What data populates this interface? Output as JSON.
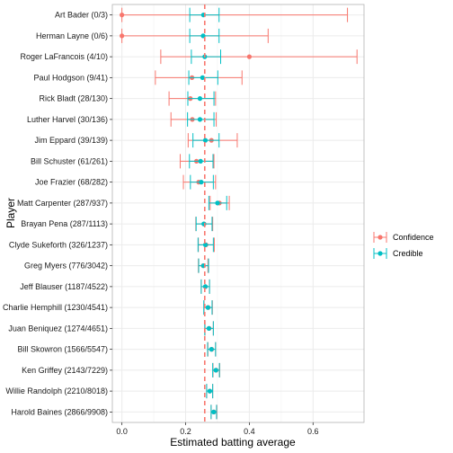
{
  "chart_data": {
    "type": "dot-errorbar",
    "xlabel": "Estimated batting average",
    "ylabel": "Player",
    "xlim": [
      -0.03,
      0.76
    ],
    "xticks": [
      0.0,
      0.2,
      0.4,
      0.6
    ],
    "xtick_labels": [
      "0.0",
      "0.2",
      "0.4",
      "0.6"
    ],
    "reference_line": {
      "x": 0.26,
      "color": "#F8766D",
      "style": "dashed"
    },
    "grid": true,
    "legend_position": "right",
    "legend_title": "",
    "players": [
      "Art Bader (0/3)",
      "Herman Layne (0/6)",
      "Roger LaFrancois (4/10)",
      "Paul Hodgson (9/41)",
      "Rick Bladt (28/130)",
      "Luther Harvel (30/136)",
      "Jim Eppard (39/139)",
      "Bill Schuster (61/261)",
      "Joe Frazier (68/282)",
      "Matt Carpenter (287/937)",
      "Brayan Pena (287/1113)",
      "Clyde Sukeforth (326/1237)",
      "Greg Myers (776/3042)",
      "Jeff Blauser (1187/4522)",
      "Charlie Hemphill (1230/4541)",
      "Juan Beniquez (1274/4651)",
      "Bill Skowron (1566/5547)",
      "Ken Griffey (2143/7229)",
      "Willie Randolph (2210/8018)",
      "Harold Baines (2866/9908)"
    ],
    "series": [
      {
        "name": "Confidence",
        "color": "#F8766D",
        "estimate": [
          0.0,
          0.0,
          0.4,
          0.22,
          0.215,
          0.221,
          0.281,
          0.234,
          0.241,
          0.306,
          0.258,
          0.264,
          0.255,
          0.262,
          0.271,
          0.274,
          0.282,
          0.296,
          0.276,
          0.289
        ],
        "low": [
          0.0,
          0.0,
          0.122,
          0.105,
          0.148,
          0.154,
          0.208,
          0.183,
          0.193,
          0.277,
          0.232,
          0.24,
          0.24,
          0.249,
          0.258,
          0.261,
          0.27,
          0.286,
          0.266,
          0.28
        ],
        "high": [
          0.708,
          0.459,
          0.738,
          0.377,
          0.294,
          0.296,
          0.362,
          0.289,
          0.294,
          0.337,
          0.285,
          0.29,
          0.27,
          0.275,
          0.284,
          0.287,
          0.294,
          0.307,
          0.285,
          0.298
        ]
      },
      {
        "name": "Credible",
        "color": "#00BFC4",
        "estimate": [
          0.256,
          0.255,
          0.26,
          0.253,
          0.245,
          0.245,
          0.262,
          0.247,
          0.249,
          0.3,
          0.257,
          0.262,
          0.256,
          0.262,
          0.27,
          0.273,
          0.281,
          0.295,
          0.276,
          0.288
        ],
        "low": [
          0.213,
          0.213,
          0.218,
          0.21,
          0.207,
          0.206,
          0.223,
          0.212,
          0.215,
          0.273,
          0.233,
          0.239,
          0.241,
          0.249,
          0.257,
          0.26,
          0.269,
          0.285,
          0.266,
          0.28
        ],
        "high": [
          0.305,
          0.305,
          0.31,
          0.301,
          0.289,
          0.289,
          0.305,
          0.286,
          0.287,
          0.329,
          0.283,
          0.287,
          0.272,
          0.275,
          0.283,
          0.287,
          0.294,
          0.306,
          0.285,
          0.297
        ]
      }
    ]
  }
}
